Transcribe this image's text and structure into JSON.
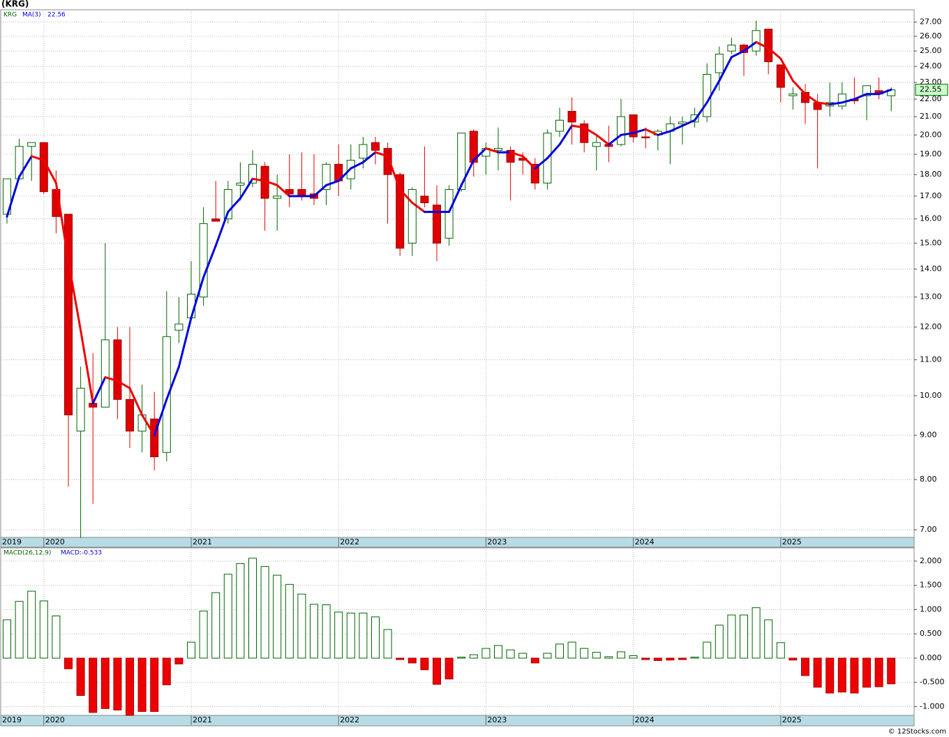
{
  "chart_data": [
    {
      "type": "candlestick",
      "title": "(KRG)",
      "log_scale": true,
      "grid": true,
      "x_start_label": "2019",
      "categories": [
        null,
        null,
        null,
        "2020",
        null,
        null,
        null,
        null,
        null,
        null,
        null,
        null,
        null,
        null,
        null,
        "2021",
        null,
        null,
        null,
        null,
        null,
        null,
        null,
        null,
        null,
        null,
        null,
        "2022",
        null,
        null,
        null,
        null,
        null,
        null,
        null,
        null,
        null,
        null,
        null,
        "2023",
        null,
        null,
        null,
        null,
        null,
        null,
        null,
        null,
        null,
        null,
        null,
        "2024",
        null,
        null,
        null,
        null,
        null,
        null,
        null,
        null,
        null,
        null,
        null,
        "2025",
        null,
        null,
        null,
        null,
        null,
        null,
        null,
        null,
        null
      ],
      "ylim": [
        6.86,
        27.9
      ],
      "yticks": [
        {
          "value": 7,
          "label": "7.00"
        },
        {
          "value": 8,
          "label": "8.00"
        },
        {
          "value": 9,
          "label": "9.00"
        },
        {
          "value": 10,
          "label": "10.00"
        },
        {
          "value": 11,
          "label": "11.00"
        },
        {
          "value": 12,
          "label": "12.00"
        },
        {
          "value": 13,
          "label": "13.00"
        },
        {
          "value": 14,
          "label": "14.00"
        },
        {
          "value": 15,
          "label": "15.00"
        },
        {
          "value": 16,
          "label": "16.00"
        },
        {
          "value": 17,
          "label": "17.00"
        },
        {
          "value": 18,
          "label": "18.00"
        },
        {
          "value": 19,
          "label": "19.00"
        },
        {
          "value": 20,
          "label": "20.00"
        },
        {
          "value": 21,
          "label": "21.00"
        },
        {
          "value": 22,
          "label": "22.00"
        },
        {
          "value": 23,
          "label": "23.00"
        },
        {
          "value": 24,
          "label": "24.00"
        },
        {
          "value": 25,
          "label": "25.00"
        },
        {
          "value": 26,
          "label": "26.00"
        },
        {
          "value": 27,
          "label": "27.00"
        }
      ],
      "series": [
        {
          "name": "KRG",
          "up_color": "#006400",
          "down_color": "#e00000",
          "last_value_label": "22.55",
          "last_value": 22.55,
          "open": [
            16.2,
            17.8,
            19.4,
            19.6,
            17.3,
            16.2,
            9.1,
            9.8,
            9.7,
            11.6,
            9.9,
            9.1,
            9.4,
            8.6,
            11.9,
            12.3,
            13.0,
            16.0,
            16.0,
            17.5,
            17.6,
            18.4,
            16.9,
            17.3,
            17.3,
            17.1,
            17.3,
            18.5,
            17.8,
            18.8,
            19.6,
            19.3,
            18.0,
            15.0,
            17.0,
            16.6,
            15.2,
            17.3,
            20.2,
            18.9,
            19.2,
            19.2,
            18.8,
            18.5,
            17.6,
            20.2,
            21.3,
            20.6,
            19.4,
            19.5,
            19.5,
            21.1,
            19.9,
            20.0,
            20.2,
            20.6,
            20.7,
            21.0,
            23.6,
            25.0,
            25.4,
            25.0,
            26.5,
            24.1,
            22.2,
            22.4,
            21.8,
            21.6,
            21.6,
            22.0,
            22.2,
            22.5,
            22.2
          ],
          "high": [
            17.8,
            19.8,
            19.6,
            19.6,
            18.2,
            16.2,
            10.8,
            11.2,
            15.0,
            12.0,
            12.0,
            10.3,
            10.1,
            13.2,
            13.0,
            14.3,
            16.5,
            17.7,
            17.7,
            18.6,
            19.2,
            18.6,
            18.0,
            19.0,
            19.1,
            19.0,
            18.6,
            19.5,
            19.5,
            19.9,
            19.9,
            19.6,
            18.1,
            17.4,
            19.4,
            17.5,
            17.5,
            20.1,
            20.3,
            19.6,
            20.4,
            19.4,
            19.1,
            18.8,
            20.3,
            21.5,
            22.1,
            20.8,
            20.0,
            20.5,
            22.0,
            21.1,
            20.4,
            20.3,
            21.0,
            21.0,
            21.5,
            24.2,
            25.3,
            25.9,
            25.5,
            27.1,
            26.5,
            24.1,
            22.7,
            22.9,
            22.3,
            23.0,
            23.0,
            23.3,
            22.8,
            23.3,
            22.7
          ],
          "low": [
            15.8,
            17.8,
            17.7,
            17.1,
            15.4,
            7.85,
            6.85,
            7.5,
            9.7,
            9.4,
            8.7,
            8.6,
            8.2,
            8.4,
            11.5,
            12.3,
            12.7,
            15.9,
            15.8,
            16.8,
            17.4,
            15.5,
            15.5,
            16.5,
            16.8,
            16.6,
            16.6,
            17.0,
            17.3,
            18.3,
            18.5,
            15.8,
            14.5,
            14.5,
            16.5,
            14.3,
            14.9,
            17.2,
            17.9,
            18.0,
            18.2,
            16.8,
            18.0,
            17.3,
            17.3,
            19.9,
            19.5,
            19.1,
            18.2,
            18.6,
            19.4,
            19.6,
            19.3,
            19.2,
            18.5,
            19.5,
            20.4,
            20.7,
            22.5,
            24.8,
            23.4,
            24.7,
            23.5,
            21.8,
            21.4,
            20.6,
            18.3,
            21.0,
            21.4,
            21.7,
            20.8,
            22.0,
            21.3
          ],
          "close": [
            17.8,
            19.4,
            19.6,
            17.2,
            16.1,
            9.5,
            10.2,
            9.7,
            11.6,
            9.9,
            9.1,
            9.5,
            8.5,
            11.7,
            12.1,
            13.1,
            15.8,
            15.9,
            17.3,
            17.6,
            18.5,
            16.9,
            17.0,
            17.1,
            17.0,
            16.9,
            18.5,
            17.7,
            18.7,
            19.5,
            19.2,
            18.0,
            14.8,
            17.3,
            16.7,
            15.0,
            17.3,
            20.1,
            18.6,
            19.3,
            19.3,
            18.6,
            18.7,
            17.6,
            20.1,
            20.8,
            20.7,
            19.6,
            19.6,
            19.4,
            21.0,
            19.9,
            19.85,
            20.2,
            20.6,
            20.7,
            21.1,
            23.5,
            24.8,
            25.4,
            24.9,
            26.4,
            24.3,
            22.7,
            22.3,
            21.8,
            21.4,
            21.8,
            22.3,
            21.9,
            22.8,
            22.3,
            22.55
          ]
        },
        {
          "name": "MA(3)",
          "color": "#0000dd",
          "down_color": "#ee0000",
          "last_value_label": "22.56",
          "values": [
            16.1,
            17.9,
            18.9,
            18.7,
            17.6,
            14.3,
            11.9,
            9.8,
            10.5,
            10.4,
            10.2,
            9.5,
            9.0,
            9.9,
            10.8,
            12.3,
            13.7,
            14.9,
            16.3,
            16.9,
            17.8,
            17.7,
            17.5,
            17.0,
            17.0,
            17.0,
            17.5,
            17.7,
            18.3,
            18.6,
            19.1,
            18.9,
            17.3,
            16.7,
            16.3,
            16.3,
            16.3,
            17.5,
            18.7,
            19.3,
            19.1,
            19.1,
            18.9,
            18.3,
            18.8,
            19.5,
            20.5,
            20.4,
            20.0,
            19.5,
            20.0,
            20.1,
            20.3,
            20.0,
            20.2,
            20.5,
            20.8,
            21.8,
            23.1,
            24.6,
            25.0,
            25.6,
            25.2,
            24.5,
            23.1,
            22.3,
            21.8,
            21.7,
            21.8,
            22.0,
            22.3,
            22.3,
            22.56
          ]
        }
      ]
    },
    {
      "type": "bar",
      "title": "MACD(26,12,9)",
      "subtitle": "MACD:-0.533",
      "grid": true,
      "x_start_label": "2019",
      "categories": [
        null,
        null,
        null,
        "2020",
        null,
        null,
        null,
        null,
        null,
        null,
        null,
        null,
        null,
        null,
        null,
        "2021",
        null,
        null,
        null,
        null,
        null,
        null,
        null,
        null,
        null,
        null,
        null,
        "2022",
        null,
        null,
        null,
        null,
        null,
        null,
        null,
        null,
        null,
        null,
        null,
        "2023",
        null,
        null,
        null,
        null,
        null,
        null,
        null,
        null,
        null,
        null,
        null,
        "2024",
        null,
        null,
        null,
        null,
        null,
        null,
        null,
        null,
        null,
        null,
        null,
        "2025",
        null,
        null,
        null,
        null,
        null,
        null,
        null,
        null,
        null
      ],
      "ylim": [
        -1.18,
        2.273
      ],
      "yticks": [
        {
          "value": -1,
          "label": "-1.000"
        },
        {
          "value": -0.5,
          "label": "-0.500"
        },
        {
          "value": 0,
          "label": "0.000"
        },
        {
          "value": 0.5,
          "label": "0.500"
        },
        {
          "value": 1,
          "label": "1.000"
        },
        {
          "value": 1.5,
          "label": "1.500"
        },
        {
          "value": 2,
          "label": "2.000"
        }
      ],
      "up_color": "#006400",
      "down_color": "#ee0000",
      "values": [
        0.79,
        1.17,
        1.38,
        1.18,
        0.87,
        -0.22,
        -0.77,
        -1.12,
        -1.04,
        -1.07,
        -1.18,
        -1.1,
        -1.1,
        -0.55,
        -0.12,
        0.33,
        0.97,
        1.35,
        1.73,
        1.95,
        2.06,
        1.89,
        1.71,
        1.52,
        1.32,
        1.11,
        1.1,
        0.95,
        0.93,
        0.93,
        0.85,
        0.59,
        -0.03,
        -0.1,
        -0.24,
        -0.54,
        -0.43,
        0.02,
        0.07,
        0.2,
        0.26,
        0.17,
        0.1,
        -0.1,
        0.1,
        0.29,
        0.33,
        0.2,
        0.12,
        0.03,
        0.13,
        0.05,
        -0.03,
        -0.05,
        -0.04,
        -0.03,
        0.02,
        0.33,
        0.68,
        0.89,
        0.89,
        1.04,
        0.79,
        0.32,
        -0.04,
        -0.36,
        -0.6,
        -0.72,
        -0.7,
        -0.72,
        -0.6,
        -0.59,
        -0.53
      ]
    }
  ],
  "footer": "© 12Stocks.com"
}
